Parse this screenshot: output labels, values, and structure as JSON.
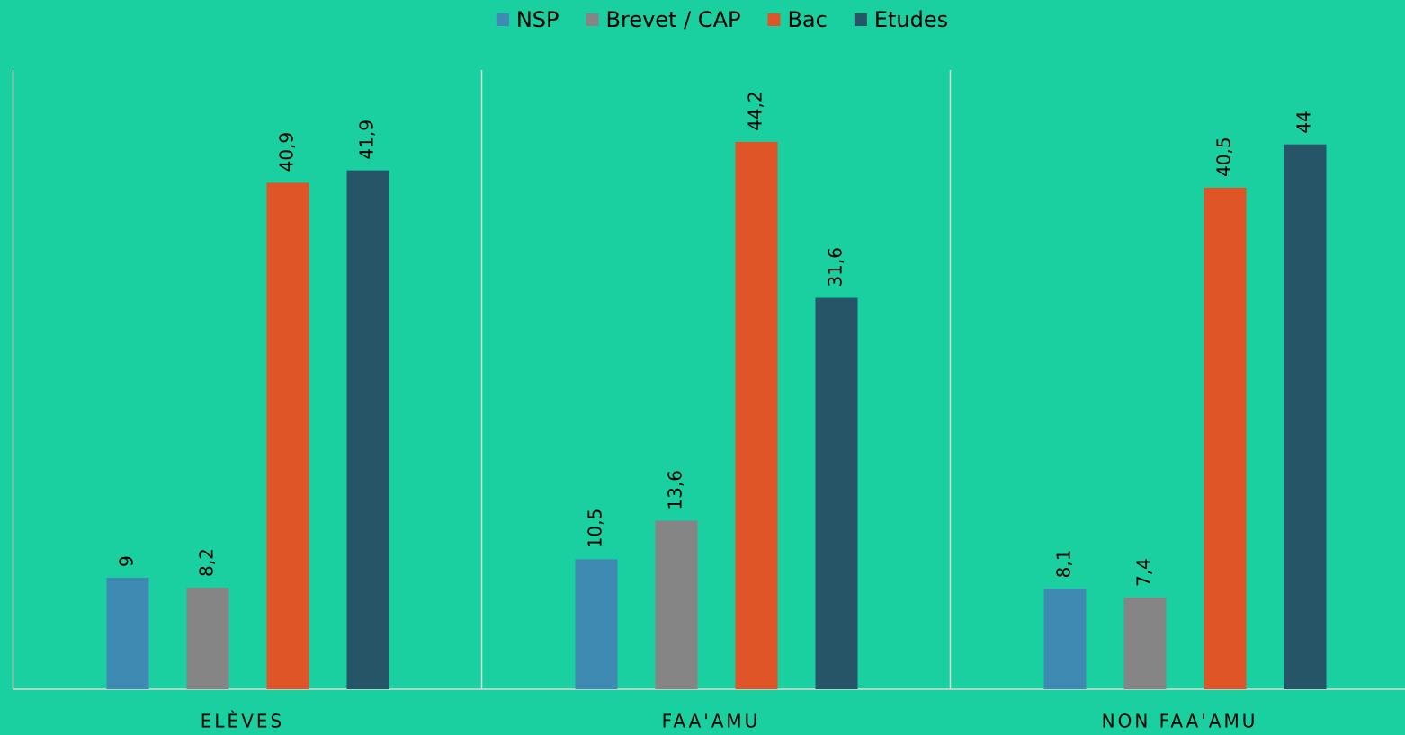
{
  "chart_data": {
    "type": "bar",
    "categories": [
      "ELÈVES",
      "FAA'AMU",
      "NON FAA'AMU"
    ],
    "series": [
      {
        "name": "NSP",
        "color": "#3f8ab3",
        "values": [
          9,
          10.5,
          8.1
        ],
        "value_labels": [
          "9",
          "10,5",
          "8,1"
        ]
      },
      {
        "name": "Brevet / CAP",
        "color": "#858585",
        "values": [
          8.2,
          13.6,
          7.4
        ],
        "value_labels": [
          "8,2",
          "13,6",
          "7,4"
        ]
      },
      {
        "name": "Bac",
        "color": "#e05527",
        "values": [
          40.9,
          44.2,
          40.5
        ],
        "value_labels": [
          "40,9",
          "44,2",
          "40,5"
        ]
      },
      {
        "name": "Etudes",
        "color": "#265568",
        "values": [
          41.9,
          31.6,
          44
        ],
        "value_labels": [
          "41,9",
          "31,6",
          "44"
        ]
      }
    ],
    "ylim": [
      0,
      50
    ],
    "legend": "top"
  }
}
